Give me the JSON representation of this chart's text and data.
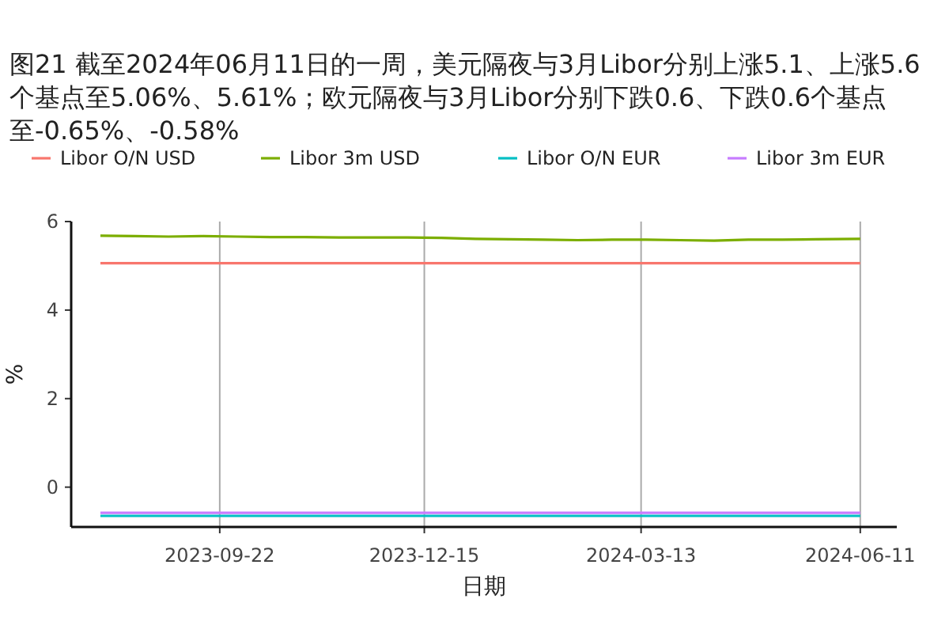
{
  "chart_data": {
    "type": "line",
    "title": "图21  截至2024年06月11日的一周，美元隔夜与3月Libor分别上涨5.1、上涨5.6个基点至5.06%、5.61%；欧元隔夜与3月Libor分别下跌0.6、下跌0.6个基点至-0.65%、-0.58%",
    "xlabel": "日期",
    "ylabel": "%",
    "xlim": [
      "2023-07-23",
      "2024-06-26"
    ],
    "xticks": [
      "2023-09-22",
      "2023-12-15",
      "2024-03-13",
      "2024-06-11"
    ],
    "ylim": [
      -0.9,
      6
    ],
    "yticks": [
      0,
      2,
      4,
      6
    ],
    "grid": "x",
    "legend": "top",
    "line_style": "solid",
    "marker": "none",
    "series": [
      {
        "name": "Libor O/N USD",
        "color": "#f8766d",
        "x": [
          "2023-08-04",
          "2024-06-11"
        ],
        "values": [
          5.06,
          5.06
        ]
      },
      {
        "name": "Libor 3m USD",
        "color": "#7cae00",
        "x": [
          "2023-08-04",
          "2023-08-18",
          "2023-09-01",
          "2023-09-15",
          "2023-09-29",
          "2023-10-13",
          "2023-10-27",
          "2023-11-10",
          "2023-11-24",
          "2023-12-08",
          "2023-12-22",
          "2024-01-05",
          "2024-01-19",
          "2024-02-02",
          "2024-02-16",
          "2024-03-01",
          "2024-03-15",
          "2024-03-29",
          "2024-04-12",
          "2024-04-26",
          "2024-05-10",
          "2024-05-24",
          "2024-06-11"
        ],
        "values": [
          5.68,
          5.67,
          5.66,
          5.67,
          5.66,
          5.65,
          5.65,
          5.64,
          5.64,
          5.64,
          5.63,
          5.61,
          5.6,
          5.59,
          5.58,
          5.59,
          5.59,
          5.58,
          5.57,
          5.59,
          5.59,
          5.6,
          5.61
        ]
      },
      {
        "name": "Libor O/N EUR",
        "color": "#00bfc4",
        "x": [
          "2023-08-04",
          "2024-06-11"
        ],
        "values": [
          -0.65,
          -0.65
        ]
      },
      {
        "name": "Libor 3m EUR",
        "color": "#c77cff",
        "x": [
          "2023-08-04",
          "2024-06-11"
        ],
        "values": [
          -0.58,
          -0.58
        ]
      }
    ]
  }
}
